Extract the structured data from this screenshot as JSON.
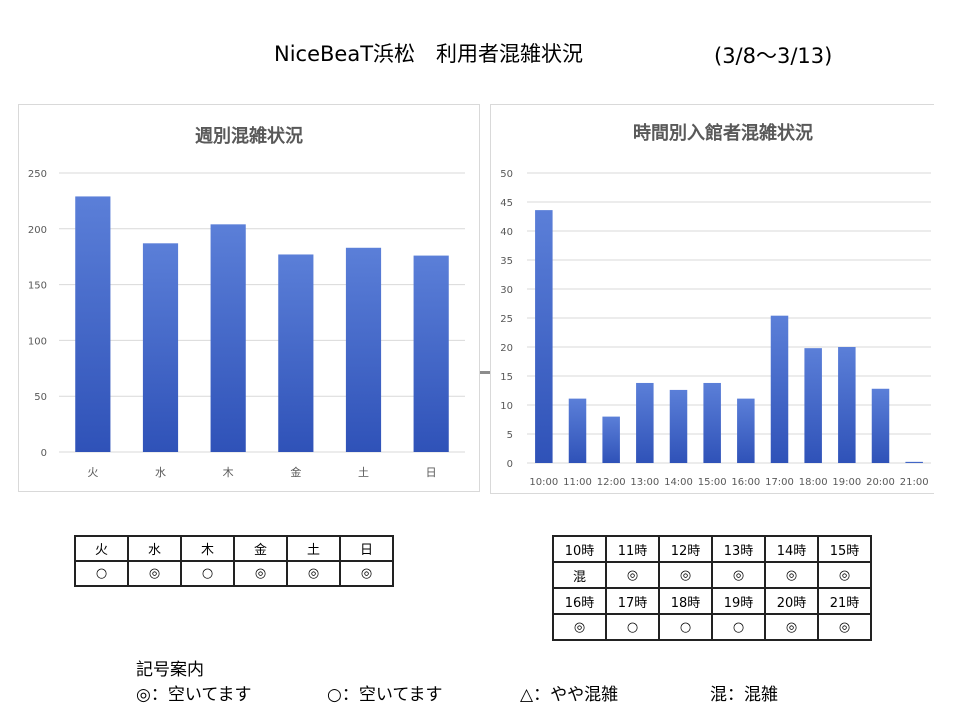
{
  "header": {
    "title": "NiceBeaT浜松　利用者混雑状況",
    "date_range": "(3/8～3/13)"
  },
  "colors": {
    "bar_top": "#5b7fd8",
    "bar_bottom": "#2f52b8",
    "grid": "#d9d9d9",
    "axis_text": "#595959",
    "title_text": "#595959"
  },
  "chart_data": [
    {
      "type": "bar",
      "title": "週別混雑状況",
      "categories": [
        "火",
        "水",
        "木",
        "金",
        "土",
        "日"
      ],
      "values": [
        229,
        187,
        204,
        177,
        183,
        176
      ],
      "ylim": [
        0,
        250
      ],
      "yticks": [
        0,
        50,
        100,
        150,
        200,
        250
      ],
      "grid": true,
      "legend": "none"
    },
    {
      "type": "bar",
      "title": "時間別入館者混雑状況",
      "categories": [
        "10:00",
        "11:00",
        "12:00",
        "13:00",
        "14:00",
        "15:00",
        "16:00",
        "17:00",
        "18:00",
        "19:00",
        "20:00",
        "21:00"
      ],
      "values": [
        43.6,
        11.1,
        8.0,
        13.8,
        12.6,
        13.8,
        11.1,
        25.4,
        19.8,
        20.0,
        12.8,
        0.2
      ],
      "ylim": [
        0,
        50
      ],
      "yticks": [
        0,
        5,
        10,
        15,
        20,
        25,
        30,
        35,
        40,
        45,
        50
      ],
      "grid": true,
      "legend": "none"
    }
  ],
  "weekly_table": {
    "headers": [
      "火",
      "水",
      "木",
      "金",
      "土",
      "日"
    ],
    "marks": [
      "○",
      "◎",
      "○",
      "◎",
      "◎",
      "◎"
    ]
  },
  "hourly_table": {
    "headers_1": [
      "10時",
      "11時",
      "12時",
      "13時",
      "14時",
      "15時"
    ],
    "marks_1": [
      "混",
      "◎",
      "◎",
      "◎",
      "◎",
      "◎"
    ],
    "headers_2": [
      "16時",
      "17時",
      "18時",
      "19時",
      "20時",
      "21時"
    ],
    "marks_2": [
      "◎",
      "○",
      "○",
      "○",
      "◎",
      "◎"
    ]
  },
  "legend": {
    "title": "記号案内",
    "items": [
      "◎：空いてます",
      "○：空いてます",
      "△：やや混雑",
      "混：混雑"
    ]
  }
}
